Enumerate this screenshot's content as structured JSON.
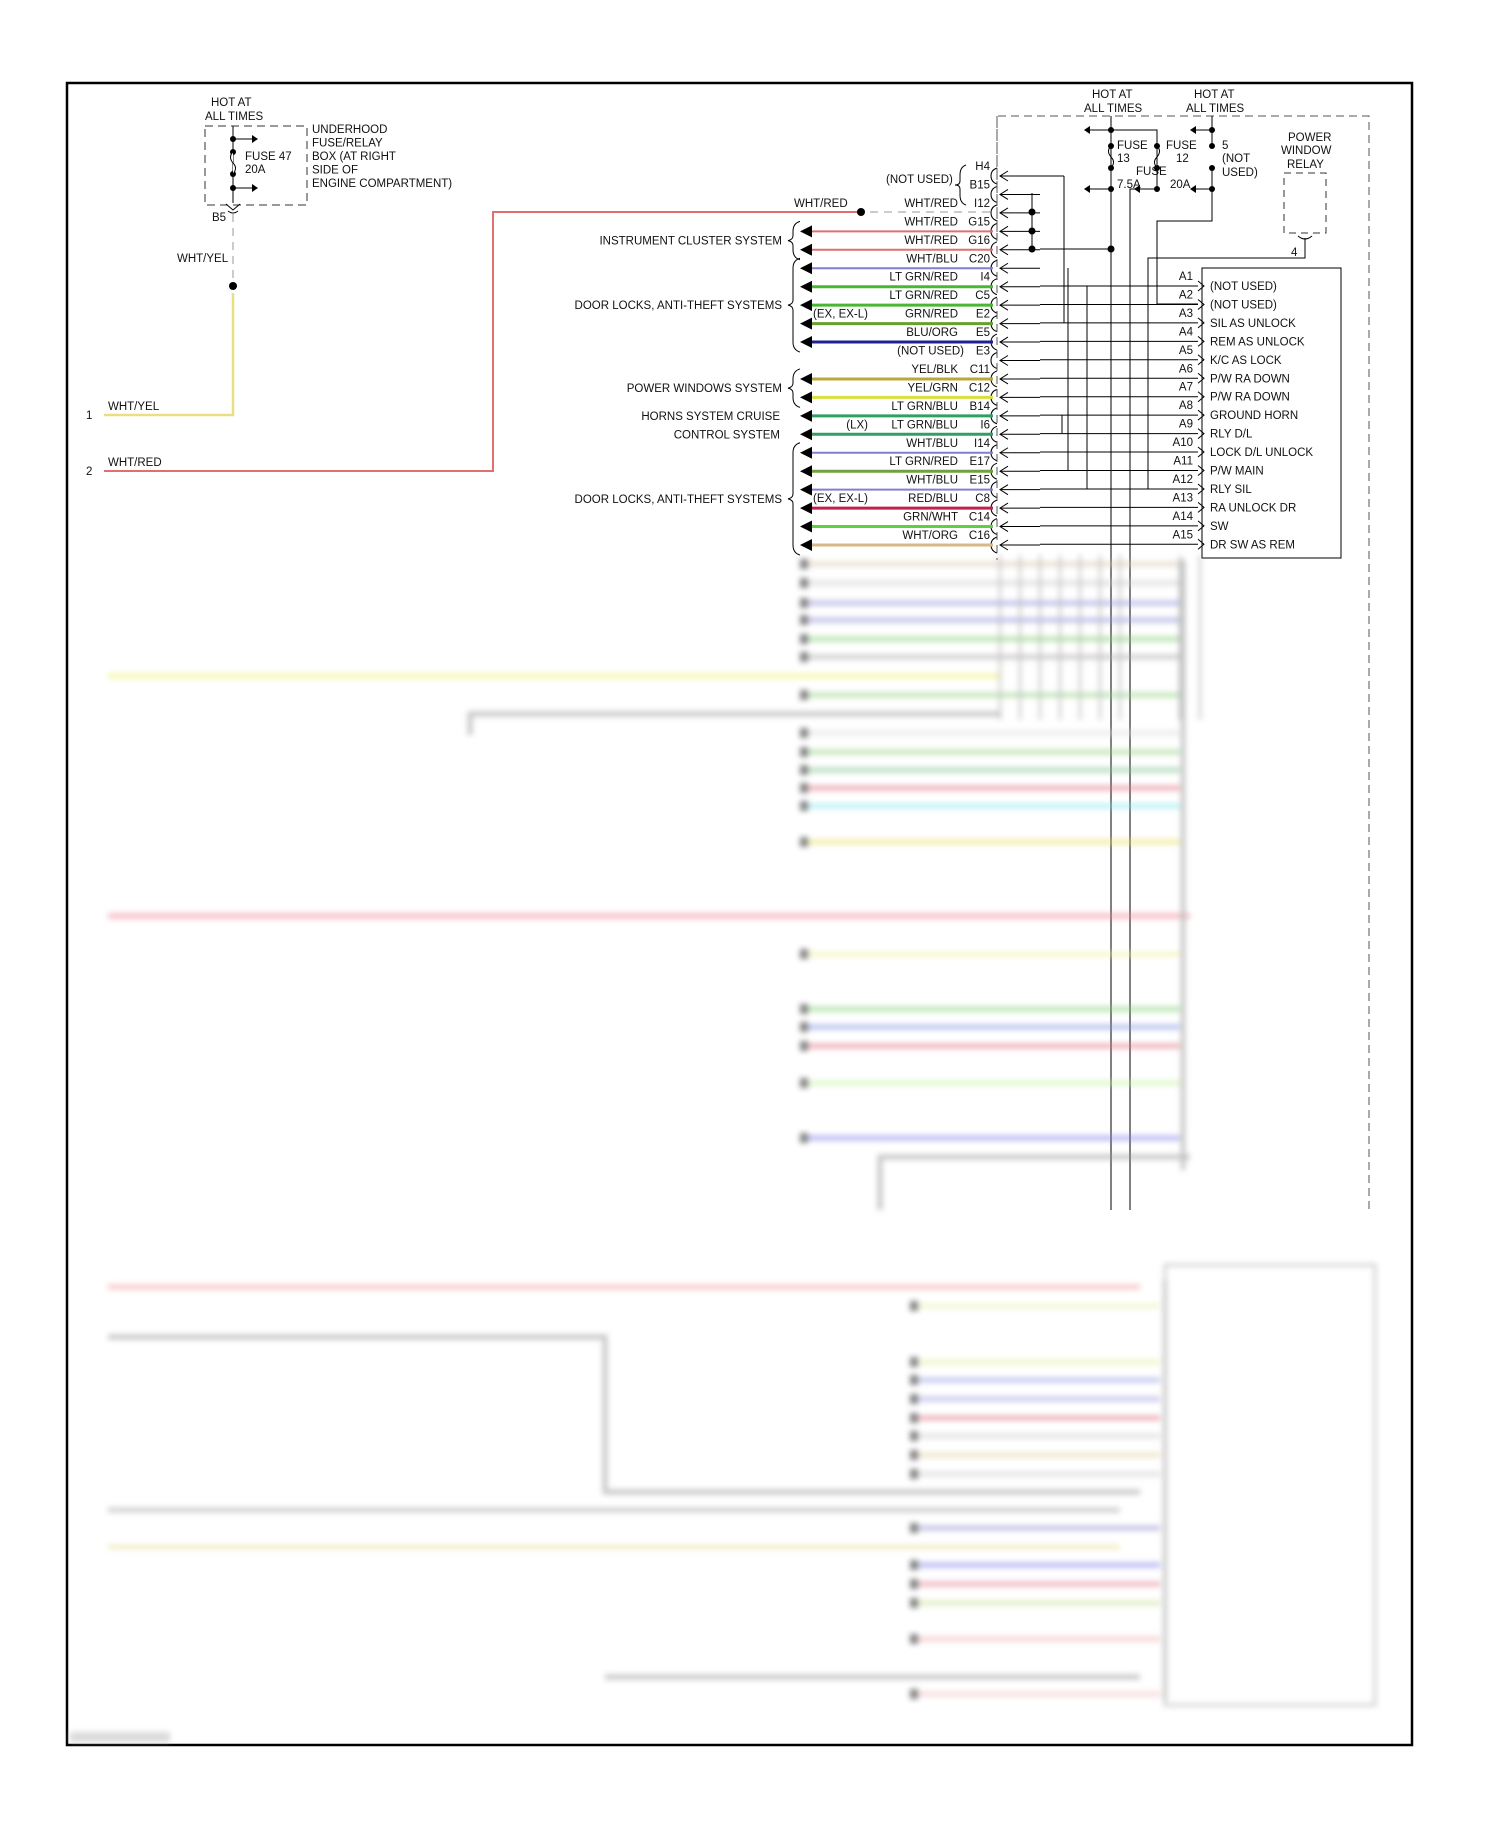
{
  "left_fuse": {
    "hot_label_1": "HOT AT",
    "hot_label_2": "ALL TIMES",
    "fuse_name": "FUSE 47",
    "fuse_rating": "20A",
    "box_label": [
      "UNDERHOOD",
      "FUSE/RELAY",
      "BOX (AT RIGHT",
      "SIDE OF",
      "ENGINE COMPARTMENT)"
    ],
    "pin": "B5",
    "wire_label": "WHT/YEL"
  },
  "terminals": [
    {
      "number": "1",
      "wire": "WHT/YEL",
      "color": "#e8e080"
    },
    {
      "number": "2",
      "wire": "WHT/RED",
      "color": "#e07070"
    }
  ],
  "splice_wire_label": "WHT/RED",
  "not_used_label": "(NOT USED)",
  "connector_rows": [
    {
      "pin": "H4",
      "wire": "",
      "note": "",
      "color": ""
    },
    {
      "pin": "B15",
      "wire": "",
      "note": "",
      "color": ""
    },
    {
      "pin": "I12",
      "wire": "WHT/RED",
      "note": "",
      "color": "#cccccc"
    },
    {
      "pin": "G15",
      "wire": "WHT/RED",
      "note": "",
      "color": "#e07070"
    },
    {
      "pin": "G16",
      "wire": "WHT/RED",
      "note": "",
      "color": "#e07070"
    },
    {
      "pin": "C20",
      "wire": "WHT/BLU",
      "note": "",
      "color": "#8080d0"
    },
    {
      "pin": "I4",
      "wire": "LT GRN/RED",
      "note": "",
      "color": "#48b830"
    },
    {
      "pin": "C5",
      "wire": "LT GRN/RED",
      "note": "",
      "color": "#48b830"
    },
    {
      "pin": "E2",
      "wire": "GRN/RED",
      "note": "(EX, EX-L)",
      "color": "#68a030"
    },
    {
      "pin": "E5",
      "wire": "BLU/ORG",
      "note": "",
      "color": "#202090"
    },
    {
      "pin": "E3",
      "wire": "(NOT USED)",
      "note": "",
      "color": ""
    },
    {
      "pin": "C11",
      "wire": "YEL/BLK",
      "note": "",
      "color": "#b8a838"
    },
    {
      "pin": "C12",
      "wire": "YEL/GRN",
      "note": "",
      "color": "#d8e040"
    },
    {
      "pin": "B14",
      "wire": "LT GRN/BLU",
      "note": "",
      "color": "#30a060"
    },
    {
      "pin": "I6",
      "wire": "LT GRN/BLU",
      "note": "(LX)",
      "color": "#30a060"
    },
    {
      "pin": "I14",
      "wire": "WHT/BLU",
      "note": "",
      "color": "#8080d0"
    },
    {
      "pin": "E17",
      "wire": "LT GRN/RED",
      "note": "",
      "color": "#70a040"
    },
    {
      "pin": "E15",
      "wire": "WHT/BLU",
      "note": "",
      "color": "#8080d0"
    },
    {
      "pin": "C8",
      "wire": "RED/BLU",
      "note": "(EX, EX-L)",
      "color": "#c02050"
    },
    {
      "pin": "C14",
      "wire": "GRN/WHT",
      "note": "",
      "color": "#60d040"
    },
    {
      "pin": "C16",
      "wire": "WHT/ORG",
      "note": "",
      "color": "#d8b888"
    }
  ],
  "systems": [
    {
      "label": [
        "INSTRUMENT CLUSTER SYSTEM"
      ]
    },
    {
      "label": [
        "DOOR LOCKS, ANTI-THEFT SYSTEMS"
      ]
    },
    {
      "label": [
        "POWER WINDOWS SYSTEM"
      ]
    },
    {
      "label": [
        "HORNS SYSTEM CRUISE",
        "CONTROL SYSTEM"
      ]
    },
    {
      "label": [
        "DOOR LOCKS, ANTI-THEFT SYSTEMS"
      ]
    }
  ],
  "right_fuses": {
    "hot_label_1": "HOT AT",
    "hot_label_2": "ALL TIMES",
    "fuse13": [
      "FUSE",
      "13",
      "7.5A"
    ],
    "fuse12": [
      "FUSE",
      "FUSE",
      "12",
      "20A"
    ],
    "fuse5": [
      "5",
      "(NOT",
      "USED)"
    ],
    "relay_label": [
      "POWER",
      "WINDOW",
      "RELAY"
    ],
    "relay_pin": "4"
  },
  "module_pins": [
    {
      "pin": "A1",
      "label": "(NOT USED)"
    },
    {
      "pin": "A2",
      "label": "(NOT USED)"
    },
    {
      "pin": "A3",
      "label": "SIL AS UNLOCK"
    },
    {
      "pin": "A4",
      "label": "REM AS UNLOCK"
    },
    {
      "pin": "A5",
      "label": "K/C AS LOCK"
    },
    {
      "pin": "A6",
      "label": "P/W RA DOWN"
    },
    {
      "pin": "A7",
      "label": "P/W RA DOWN"
    },
    {
      "pin": "A8",
      "label": "GROUND HORN"
    },
    {
      "pin": "A9",
      "label": "RLY D/L"
    },
    {
      "pin": "A10",
      "label": "LOCK D/L UNLOCK"
    },
    {
      "pin": "A11",
      "label": "P/W MAIN"
    },
    {
      "pin": "A12",
      "label": "RLY SIL"
    },
    {
      "pin": "A13",
      "label": "RA UNLOCK DR"
    },
    {
      "pin": "A14",
      "label": "SW"
    },
    {
      "pin": "A15",
      "label": "DR SW AS REM"
    }
  ]
}
